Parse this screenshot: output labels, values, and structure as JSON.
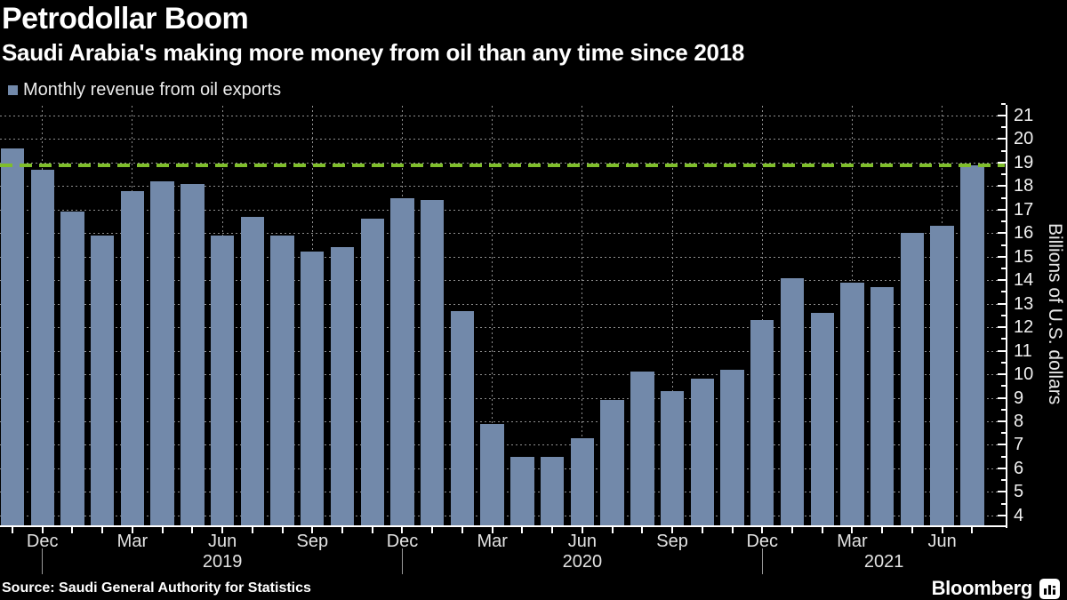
{
  "header": {
    "title": "Petrodollar Boom",
    "subtitle": "Saudi Arabia's making more money from oil than any time since 2018",
    "legend_label": "Monthly revenue from oil exports"
  },
  "footer": {
    "source": "Source: Saudi General Authority for Statistics",
    "brand": "Bloomberg"
  },
  "colors": {
    "background": "#000000",
    "bar": "#7289aa",
    "reference_line": "#7fbe2b",
    "grid": "#8f8f8f",
    "axis": "#ffffff"
  },
  "chart_data": {
    "type": "bar",
    "title": "Petrodollar Boom",
    "subtitle": "Saudi Arabia's making more money from oil than any time since 2018",
    "series_name": "Monthly revenue from oil exports",
    "ylabel": "Billions of U.S. dollars",
    "ylim": [
      4,
      21
    ],
    "ytick_step": 1,
    "grid": true,
    "legend_position": "top-left",
    "reference_line_value": 18.9,
    "x": [
      "Nov 2018",
      "Dec 2018",
      "Jan 2019",
      "Feb 2019",
      "Mar 2019",
      "Apr 2019",
      "May 2019",
      "Jun 2019",
      "Jul 2019",
      "Aug 2019",
      "Sep 2019",
      "Oct 2019",
      "Nov 2019",
      "Dec 2019",
      "Jan 2020",
      "Feb 2020",
      "Mar 2020",
      "Apr 2020",
      "May 2020",
      "Jun 2020",
      "Jul 2020",
      "Aug 2020",
      "Sep 2020",
      "Oct 2020",
      "Nov 2020",
      "Dec 2020",
      "Jan 2021",
      "Feb 2021",
      "Mar 2021",
      "Apr 2021",
      "May 2021",
      "Jun 2021",
      "Jul 2021"
    ],
    "values": [
      19.6,
      18.7,
      16.9,
      15.9,
      17.8,
      18.2,
      18.1,
      15.9,
      16.7,
      15.9,
      15.2,
      15.4,
      16.6,
      17.5,
      17.4,
      12.7,
      7.9,
      6.5,
      6.5,
      7.3,
      8.9,
      10.1,
      9.3,
      9.8,
      10.2,
      12.3,
      14.1,
      12.6,
      13.9,
      13.7,
      16.0,
      16.3,
      18.9
    ],
    "x_tick_labels": [
      "Dec",
      "Mar",
      "Jun",
      "Sep",
      "Dec",
      "Mar",
      "Jun",
      "Sep",
      "Dec",
      "Mar",
      "Jun"
    ],
    "x_tick_indices": [
      1,
      4,
      7,
      10,
      13,
      16,
      19,
      22,
      25,
      28,
      31
    ],
    "year_labels": [
      "2019",
      "2020",
      "2021"
    ],
    "year_separator_indices": [
      1,
      13,
      25
    ]
  }
}
